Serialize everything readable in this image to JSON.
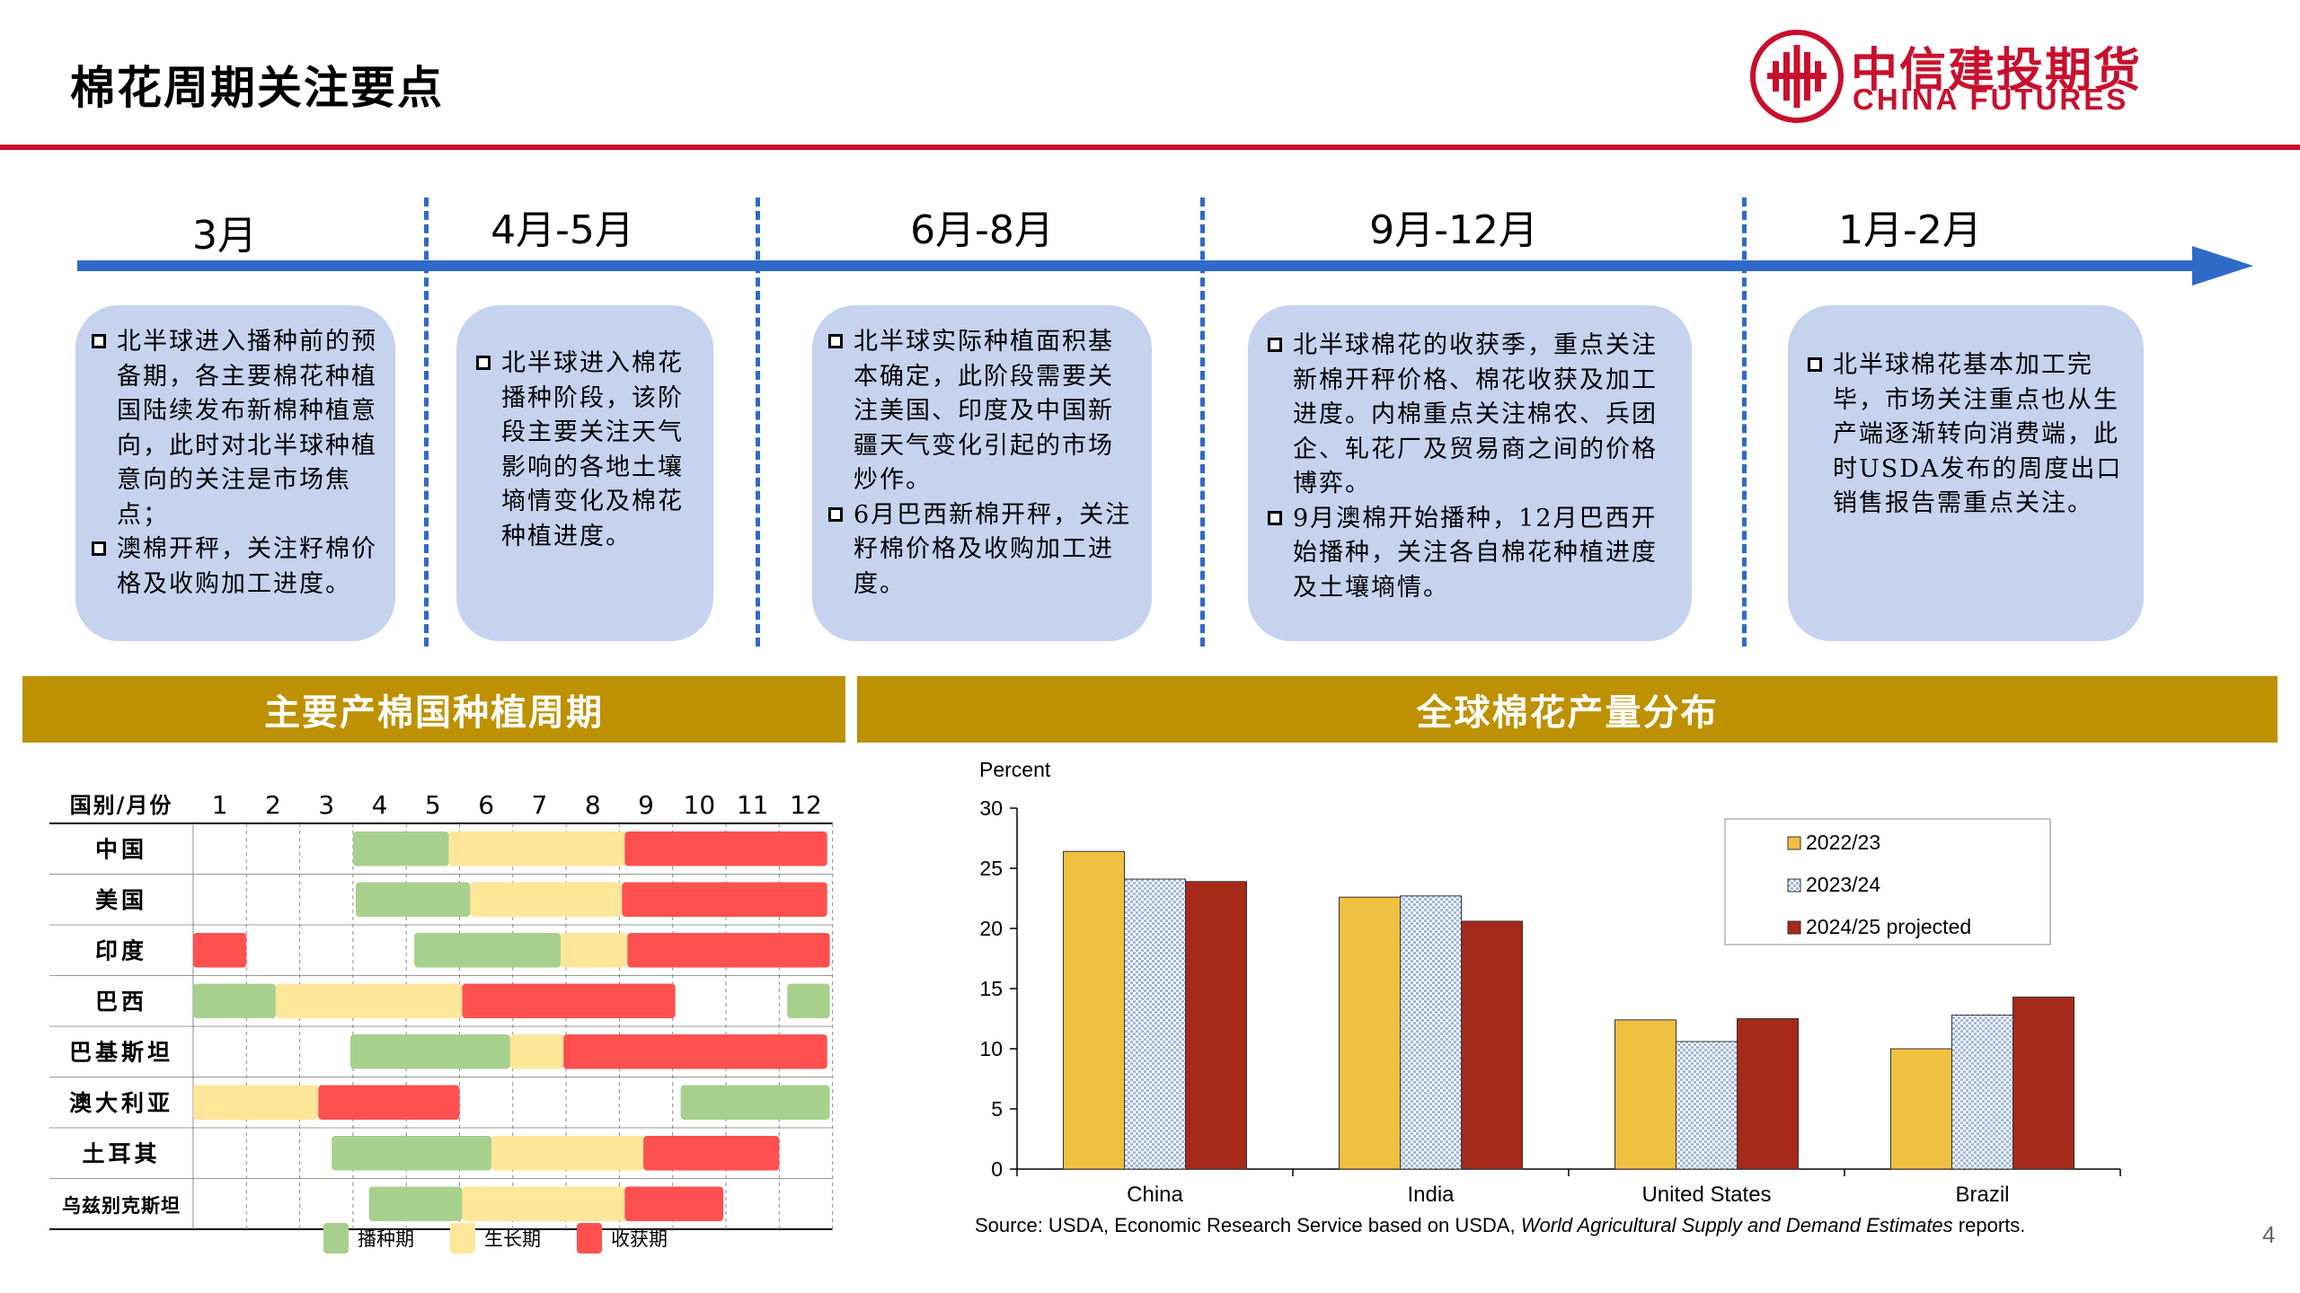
{
  "page": {
    "title": "棉花周期关注要点",
    "page_number": "4"
  },
  "brand": {
    "name_cn": "中信建投期货",
    "name_en": "CHINA FUTURES",
    "color": "#c8102e"
  },
  "timeline": {
    "periods": [
      "3月",
      "4月-5月",
      "6月-8月",
      "9月-12月",
      "1月-2月"
    ],
    "cards": [
      [
        "北半球进入播种前的预备期，各主要棉花种植国陆续发布新棉种植意向，此时对北半球种植意向的关注是市场焦点；",
        "澳棉开秤，关注籽棉价格及收购加工进度。"
      ],
      [
        "北半球进入棉花播种阶段，该阶段主要关注天气影响的各地土壤墒情变化及棉花种植进度。"
      ],
      [
        "北半球实际种植面积基本确定，此阶段需要关注美国、印度及中国新疆天气变化引起的市场炒作。",
        "6月巴西新棉开秤，关注籽棉价格及收购加工进度。"
      ],
      [
        "北半球棉花的收获季，重点关注新棉开秤价格、棉花收获及加工进度。内棉重点关注棉农、兵团企、轧花厂及贸易商之间的价格博弈。",
        "9月澳棉开始播种，12月巴西开始播种，关注各自棉花种植进度及土壤墒情。"
      ],
      [
        "北半球棉花基本加工完毕，市场关注重点也从生产端逐渐转向消费端，此时USDA发布的周度出口销售报告需重点关注。"
      ]
    ]
  },
  "planting": {
    "band_title": "主要产棉国种植周期",
    "header_label": "国别/月份",
    "months": [
      "1",
      "2",
      "3",
      "4",
      "5",
      "6",
      "7",
      "8",
      "9",
      "10",
      "11",
      "12"
    ],
    "colors": {
      "sowing": "#a8d08d",
      "growing": "#ffe699",
      "harvest": "#ff5050"
    },
    "legend": {
      "sowing": "播种期",
      "growing": "生长期",
      "harvest": "收获期"
    },
    "rows": [
      {
        "country": "中国",
        "segments": [
          [
            "sowing",
            4,
            5.8
          ],
          [
            "growing",
            5.8,
            9.1
          ],
          [
            "harvest",
            9.1,
            12.9
          ]
        ]
      },
      {
        "country": "美国",
        "segments": [
          [
            "sowing",
            4.05,
            6.2
          ],
          [
            "growing",
            6.2,
            9.05
          ],
          [
            "harvest",
            9.05,
            12.9
          ]
        ]
      },
      {
        "country": "印度",
        "segments": [
          [
            "harvest",
            1,
            2
          ],
          [
            "sowing",
            5.15,
            7.9
          ],
          [
            "growing",
            7.9,
            9.15
          ],
          [
            "harvest",
            9.15,
            12.95
          ]
        ]
      },
      {
        "country": "巴西",
        "segments": [
          [
            "sowing",
            1,
            2.55
          ],
          [
            "growing",
            2.55,
            6.05
          ],
          [
            "harvest",
            6.05,
            10.05
          ],
          [
            "sowing",
            12.15,
            12.95
          ]
        ]
      },
      {
        "country": "巴基斯坦",
        "segments": [
          [
            "sowing",
            3.95,
            6.95
          ],
          [
            "growing",
            6.95,
            7.95
          ],
          [
            "harvest",
            7.95,
            12.9
          ]
        ]
      },
      {
        "country": "澳大利亚",
        "segments": [
          [
            "growing",
            1,
            3.35
          ],
          [
            "harvest",
            3.35,
            6.0
          ],
          [
            "sowing",
            10.15,
            12.95
          ]
        ]
      },
      {
        "country": "土耳其",
        "segments": [
          [
            "sowing",
            3.6,
            6.6
          ],
          [
            "growing",
            6.6,
            9.45
          ],
          [
            "harvest",
            9.45,
            12.0
          ]
        ]
      },
      {
        "country": "乌兹别克斯坦",
        "segments": [
          [
            "sowing",
            4.3,
            6.05
          ],
          [
            "growing",
            6.05,
            9.1
          ],
          [
            "harvest",
            9.1,
            10.95
          ]
        ]
      }
    ]
  },
  "distribution": {
    "band_title": "全球棉花产量分布"
  },
  "chart_data": {
    "type": "bar",
    "ylabel": "Percent",
    "ylim": [
      0,
      30
    ],
    "yticks": [
      0,
      5,
      10,
      15,
      20,
      25,
      30
    ],
    "categories": [
      "China",
      "India",
      "United States",
      "Brazil"
    ],
    "series": [
      {
        "name": "2022/23",
        "values": [
          26.4,
          22.6,
          12.4,
          10.0
        ],
        "color": "#f0c040"
      },
      {
        "name": "2023/24",
        "values": [
          24.1,
          22.7,
          10.6,
          12.8
        ],
        "color": "#9eb8e0"
      },
      {
        "name": "2024/25 projected",
        "values": [
          23.9,
          20.6,
          12.5,
          14.3
        ],
        "color": "#a52a1a"
      }
    ],
    "legend_position": "top-right",
    "grid": false,
    "source_prefix": "Source: USDA, Economic Research Service based on USDA, ",
    "source_italic": "World Agricultural Supply and Demand Estimates",
    "source_suffix": " reports."
  }
}
